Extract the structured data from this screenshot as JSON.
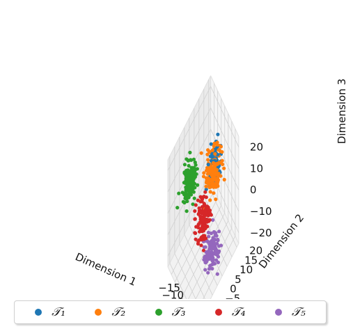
{
  "chart_data": {
    "type": "scatter",
    "projection": "3d",
    "title": "",
    "xlabel": "Dimension 1",
    "ylabel": "Dimension 2",
    "zlabel": "Dimension 3",
    "xlim": [
      -20,
      20
    ],
    "ylim": [
      -22,
      22
    ],
    "zlim": [
      -25,
      25
    ],
    "xticks": [
      "−15",
      "−10",
      "−5",
      "0",
      "5",
      "10",
      "15"
    ],
    "yticks": [
      "−20",
      "−15",
      "−10",
      "−5",
      "0",
      "5",
      "10",
      "15",
      "20"
    ],
    "zticks": [
      "−20",
      "−10",
      "0",
      "10",
      "20"
    ],
    "grid": true,
    "legend_position": "bottom",
    "series": [
      {
        "name": "𝒯₁",
        "label": "1",
        "color": "#1f77b4",
        "clusters": [
          {
            "center": [
              2,
              10,
              10
            ],
            "spread": [
              4,
              5,
              7
            ],
            "count": 60
          }
        ]
      },
      {
        "name": "𝒯₂",
        "label": "2",
        "color": "#ff7f0e",
        "clusters": [
          {
            "center": [
              4,
              8,
              10
            ],
            "spread": [
              5,
              6,
              7
            ],
            "count": 150
          }
        ]
      },
      {
        "name": "𝒯₃",
        "label": "3",
        "color": "#2ca02c",
        "clusters": [
          {
            "center": [
              -12,
              -5,
              6
            ],
            "spread": [
              4,
              5,
              6
            ],
            "count": 150
          }
        ]
      },
      {
        "name": "𝒯₄",
        "label": "4",
        "color": "#d62728",
        "clusters": [
          {
            "center": [
              3,
              -2,
              -4
            ],
            "spread": [
              5,
              5,
              8
            ],
            "count": 130
          }
        ]
      },
      {
        "name": "𝒯₅",
        "label": "5",
        "color": "#9467bd",
        "clusters": [
          {
            "center": [
              10,
              1,
              -17
            ],
            "spread": [
              5,
              6,
              5
            ],
            "count": 130
          }
        ]
      }
    ]
  }
}
